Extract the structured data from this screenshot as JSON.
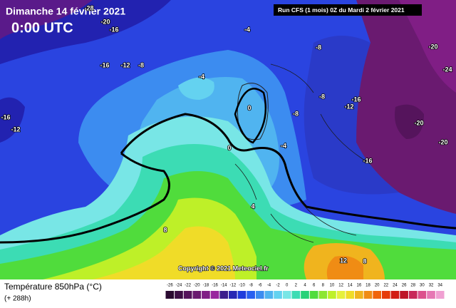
{
  "header": {
    "date": "Dimanche 14 février 2021",
    "time": "0:00 UTC",
    "run": "Run CFS (1 mois) 0Z du Mardi 2 février 2021"
  },
  "copyright": "Copyright © 2021 Meteociel.fr",
  "footer": {
    "title": "Température 850hPa (°C)",
    "subtitle": "(+ 288h)"
  },
  "legend": {
    "ticks": [
      -26,
      -24,
      -22,
      -20,
      -18,
      -16,
      -14,
      -12,
      -10,
      -8,
      -6,
      -4,
      -2,
      0,
      2,
      4,
      6,
      8,
      10,
      12,
      14,
      16,
      18,
      20,
      22,
      24,
      26,
      28,
      30,
      32,
      34
    ],
    "colors": [
      "#2a0a30",
      "#3d0f45",
      "#55145c",
      "#6a1a70",
      "#801e85",
      "#99289e",
      "#3c1e8c",
      "#2828b4",
      "#1e3cdc",
      "#2860f0",
      "#3c8cf0",
      "#50b4f0",
      "#64d2f0",
      "#78e6e6",
      "#3cdcb4",
      "#28d278",
      "#50dc3c",
      "#8ce632",
      "#bef028",
      "#e6f03c",
      "#f0dc28",
      "#f0b41e",
      "#f08c14",
      "#f0640a",
      "#e63c0a",
      "#d21e14",
      "#be1428",
      "#c8285a",
      "#dc508c",
      "#e678b4",
      "#f0a0d2"
    ]
  },
  "contour_labels": [
    "-28",
    "-20",
    "-16",
    "-4",
    "-8",
    "-20",
    "-24",
    "-16",
    "-12",
    "-8",
    "-4",
    "-8",
    "-16",
    "-12",
    "-16",
    "-12",
    "-8",
    "0",
    "-20",
    "-20",
    "0",
    "-4",
    "-16",
    "4",
    "8",
    "12",
    "8"
  ]
}
